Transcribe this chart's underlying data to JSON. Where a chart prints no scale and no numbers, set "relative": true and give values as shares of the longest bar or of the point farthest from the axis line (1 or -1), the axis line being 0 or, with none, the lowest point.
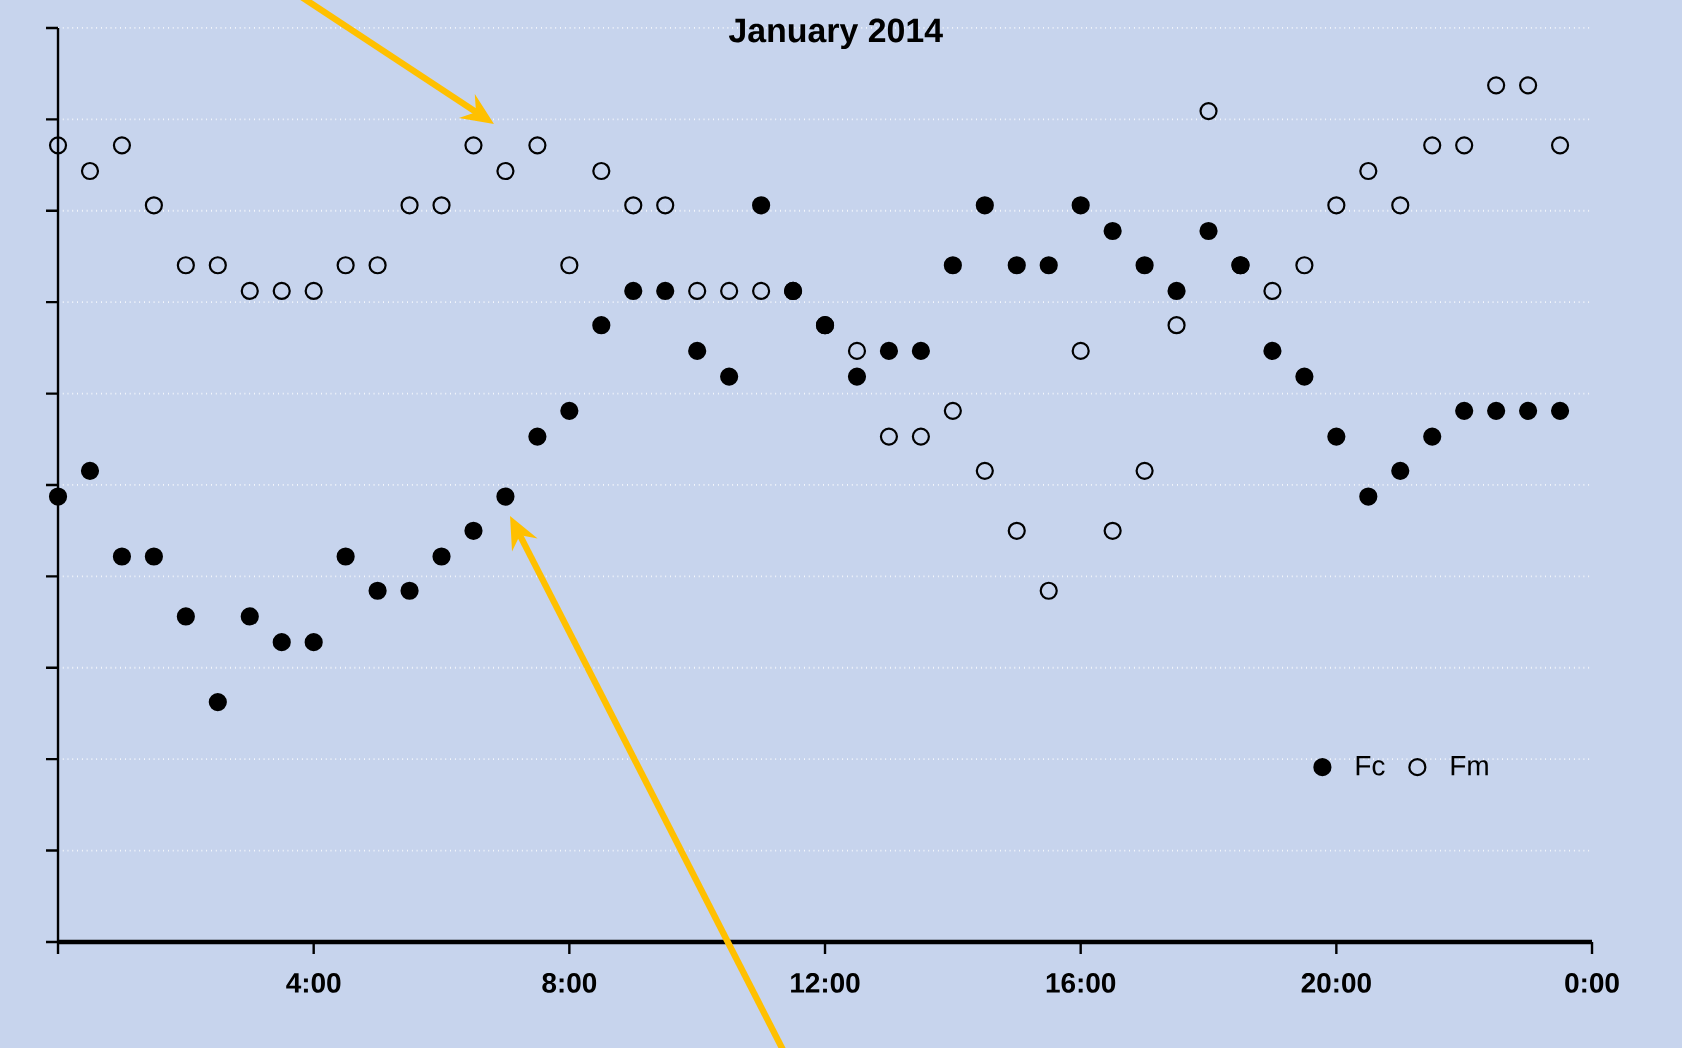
{
  "chart_data": {
    "type": "scatter",
    "title": "January 2014",
    "relative": true,
    "marker": "circle",
    "grid": "y",
    "legend": "bottom right",
    "tick_labels": "x",
    "x": [
      0,
      0.5,
      1,
      1.5,
      2,
      2.5,
      3,
      3.5,
      4,
      4.5,
      5,
      5.5,
      6,
      6.5,
      7,
      7.5,
      8,
      8.5,
      9,
      9.5,
      10,
      10.5,
      11,
      11.5,
      12,
      12.5,
      13,
      13.5,
      14,
      14.5,
      15,
      15.5,
      16,
      16.5,
      17,
      17.5,
      18,
      18.5,
      19,
      19.5,
      20,
      20.5,
      21,
      21.5,
      22,
      22.5,
      23,
      23.5
    ],
    "xlim": [
      0,
      24
    ],
    "xticks": [
      {
        "value": 0,
        "label": null
      },
      {
        "value": 4,
        "label": "4:00"
      },
      {
        "value": 8,
        "label": "8:00"
      },
      {
        "value": 12,
        "label": "12:00"
      },
      {
        "value": 16,
        "label": "16:00"
      },
      {
        "value": 20,
        "label": "20:00"
      },
      {
        "value": 24,
        "label": "0:00"
      }
    ],
    "series": [
      {
        "name": "Fc",
        "color": "#000000",
        "values": [
          0.52,
          0.55,
          0.45,
          0.45,
          0.38,
          0.28,
          0.38,
          0.35,
          0.35,
          0.45,
          0.41,
          0.41,
          0.45,
          0.48,
          0.52,
          0.59,
          0.62,
          0.72,
          0.76,
          0.76,
          0.69,
          0.66,
          0.86,
          0.76,
          0.72,
          0.66,
          0.69,
          0.69,
          0.79,
          0.86,
          0.79,
          0.79,
          0.86,
          0.83,
          0.79,
          0.76,
          0.83,
          0.79,
          0.69,
          0.66,
          0.59,
          0.52,
          0.55,
          0.59,
          0.62,
          0.62,
          0.62,
          0.62
        ]
      },
      {
        "name": "Fm",
        "color": "#000000",
        "values": [
          0.93,
          0.9,
          0.93,
          0.86,
          0.79,
          0.79,
          0.76,
          0.76,
          0.76,
          0.79,
          0.79,
          0.86,
          0.86,
          0.93,
          0.9,
          0.93,
          0.79,
          0.9,
          0.86,
          0.86,
          0.76,
          0.76,
          0.76,
          0.76,
          0.72,
          0.69,
          0.59,
          0.59,
          0.62,
          0.55,
          0.48,
          0.41,
          0.69,
          0.48,
          0.55,
          0.72,
          0.97,
          0.79,
          0.76,
          0.79,
          0.86,
          0.9,
          0.86,
          0.93,
          0.93,
          1.0,
          1.0,
          0.93
        ]
      }
    ]
  }
}
